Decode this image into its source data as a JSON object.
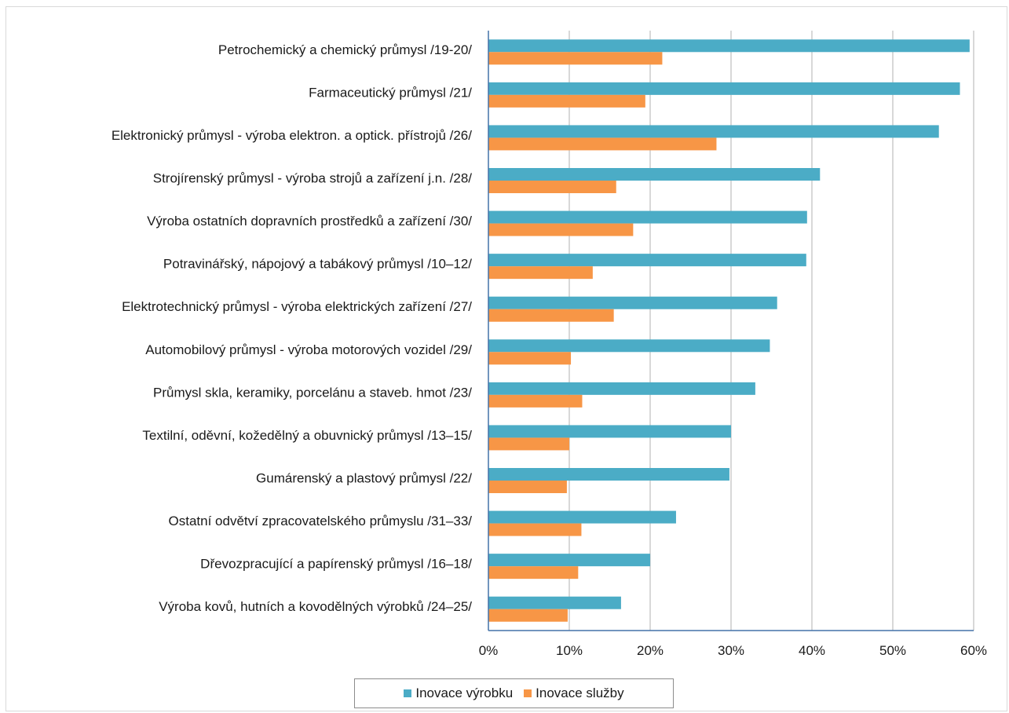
{
  "chart_data": {
    "type": "bar",
    "orientation": "horizontal",
    "categories": [
      "Petrochemický a chemický průmysl /19-20/",
      "Farmaceutický průmysl /21/",
      "Elektronický průmysl - výroba elektron. a optick. přístrojů /26/",
      "Strojírenský průmysl - výroba strojů a zařízení j.n. /28/",
      "Výroba ostatních dopravních prostředků a zařízení /30/",
      "Potravinářský, nápojový a tabákový průmysl /10–12/",
      "Elektrotechnický průmysl - výroba elektrických zařízení /27/",
      "Automobilový průmysl - výroba motorových vozidel /29/",
      "Průmysl skla, keramiky, porcelánu a staveb. hmot /23/",
      "Textilní, oděvní, kožedělný a obuvnický průmysl /13–15/",
      "Gumárenský a plastový průmysl /22/",
      "Ostatní odvětví zpracovatelského průmyslu /31–33/",
      "Dřevozpracující a papírenský průmysl /16–18/",
      "Výroba kovů, hutních a kovodělných výrobků /24–25/"
    ],
    "series": [
      {
        "name": "Inovace výrobku",
        "color": "#4bacc6",
        "values": [
          59.5,
          58.3,
          55.7,
          41.0,
          39.4,
          39.3,
          35.7,
          34.8,
          33.0,
          30.0,
          29.8,
          23.2,
          20.0,
          16.4
        ]
      },
      {
        "name": "Inovace služby",
        "color": "#f79646",
        "values": [
          21.5,
          19.4,
          28.2,
          15.8,
          17.9,
          12.9,
          15.5,
          10.2,
          11.6,
          10.0,
          9.7,
          11.5,
          11.1,
          9.8
        ]
      }
    ],
    "xlim": [
      0,
      60
    ],
    "x_ticks": [
      "0%",
      "10%",
      "20%",
      "30%",
      "40%",
      "50%",
      "60%"
    ],
    "grid": true,
    "legend_position": "bottom",
    "title": "",
    "xlabel": "",
    "ylabel": ""
  }
}
